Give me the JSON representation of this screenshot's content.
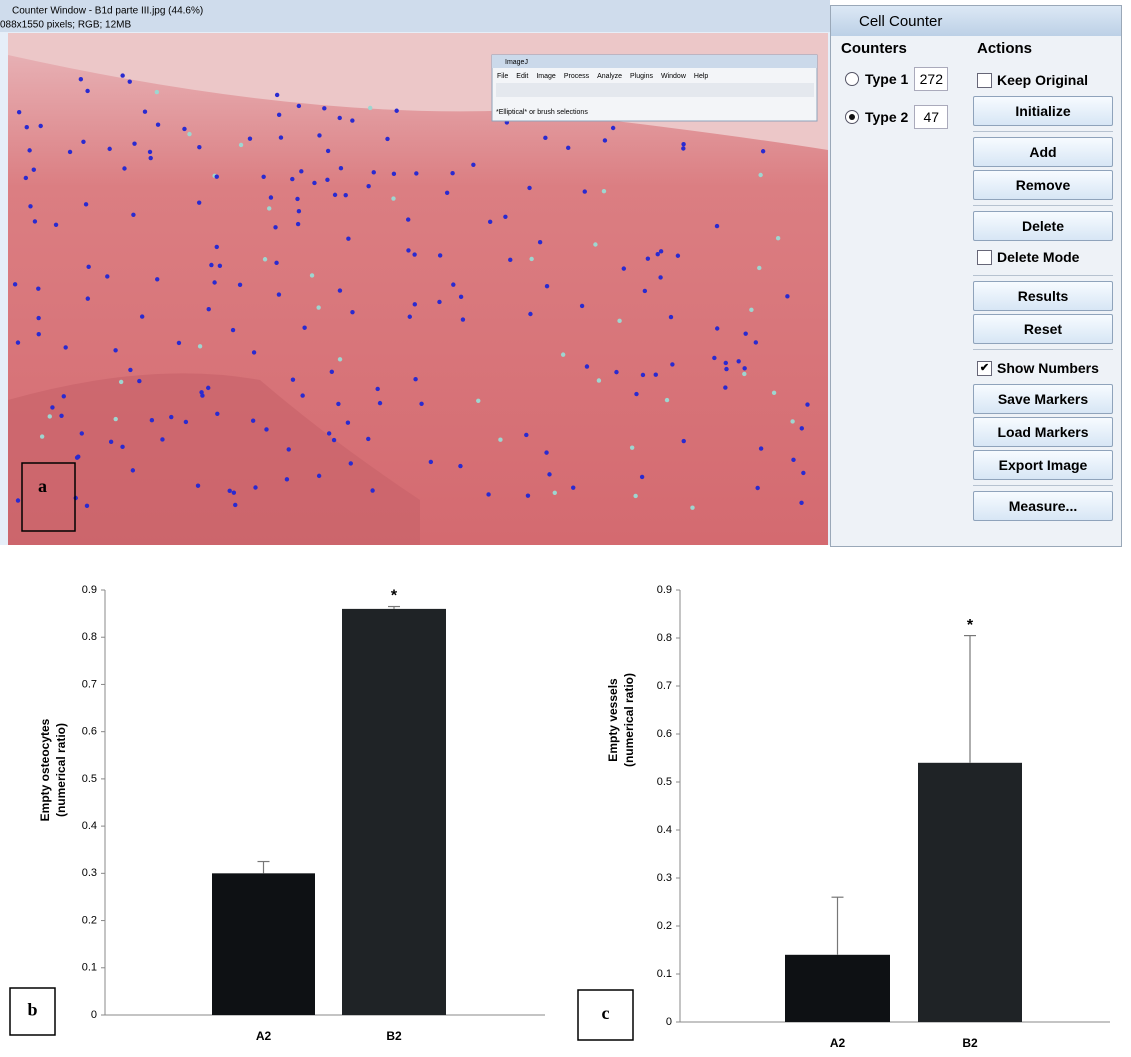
{
  "screenshot": {
    "panel_label": "a",
    "window_title": "Counter Window - B1d parte III.jpg (44.6%)",
    "image_info": "088x1550 pixels; RGB; 12MB",
    "imagej": {
      "title": "ImageJ",
      "menu": [
        "File",
        "Edit",
        "Image",
        "Process",
        "Analyze",
        "Plugins",
        "Window",
        "Help"
      ],
      "status": "*Elliptical* or brush selections"
    },
    "cell_counter": {
      "title": "Cell Counter",
      "counters_heading": "Counters",
      "counters": [
        {
          "name": "Type 1",
          "count": 272
        },
        {
          "name": "Type 2",
          "count": 47
        }
      ],
      "actions_heading": "Actions",
      "keep_original": "Keep Original",
      "initialize": "Initialize",
      "add": "Add",
      "remove": "Remove",
      "delete": "Delete",
      "delete_mode": "Delete Mode",
      "results": "Results",
      "reset": "Reset",
      "show_numbers": "Show Numbers",
      "save_markers": "Save Markers",
      "load_markers": "Load Markers",
      "export_image": "Export Image",
      "measure": "Measure..."
    }
  },
  "chart_data": [
    {
      "type": "bar",
      "panel_label": "b",
      "ylabel": [
        "Empty osteocytes",
        "(numerical ratio)"
      ],
      "categories": [
        "A2",
        "B2"
      ],
      "values": [
        0.3,
        0.86
      ],
      "errors": [
        0.025,
        0.005
      ],
      "annotations": [
        null,
        "*"
      ],
      "colors": [
        "#0e1114",
        "#1f2326"
      ],
      "ylim": [
        0,
        0.9
      ],
      "yticks": [
        0,
        0.1,
        0.2,
        0.3,
        0.4,
        0.5,
        0.6,
        0.7,
        0.8,
        0.9
      ]
    },
    {
      "type": "bar",
      "panel_label": "c",
      "ylabel": [
        "Empty vessels",
        "(numerical ratio)"
      ],
      "categories": [
        "A2",
        "B2"
      ],
      "values": [
        0.14,
        0.54
      ],
      "errors": [
        0.12,
        0.265
      ],
      "annotations": [
        null,
        "*"
      ],
      "colors": [
        "#0e1114",
        "#1f2326"
      ],
      "ylim": [
        0,
        0.9
      ],
      "yticks": [
        0,
        0.1,
        0.2,
        0.3,
        0.4,
        0.5,
        0.6,
        0.7,
        0.8,
        0.9
      ]
    }
  ]
}
